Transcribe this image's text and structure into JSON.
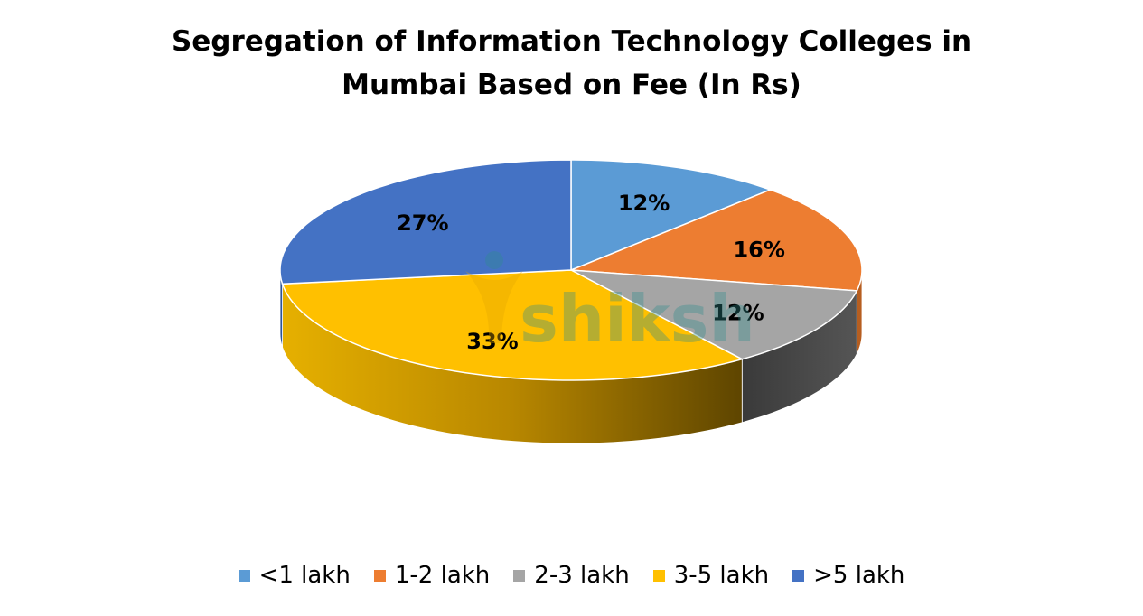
{
  "chart_data": {
    "type": "pie",
    "title": "Segregation of Information Technology Colleges in Mumbai Based on Fee (In Rs)",
    "title_lines": [
      "Segregation of Information Technology Colleges in",
      "Mumbai Based on Fee (In Rs)"
    ],
    "categories": [
      "<1 lakh",
      "1-2 lakh",
      "2-3 lakh",
      "3-5 lakh",
      ">5 lakh"
    ],
    "values": [
      12,
      16,
      12,
      33,
      27
    ],
    "data_labels": [
      "12%",
      "16%",
      "12%",
      "33%",
      "27%"
    ],
    "colors": [
      "#5B9BD5",
      "#ED7D31",
      "#A5A5A5",
      "#FFC000",
      "#4472C4"
    ],
    "side_colors": [
      "#3F77AD",
      "#B65E20",
      "#414141",
      "#C99400",
      "#2F5597"
    ],
    "style": "3d-pie",
    "legend": "bottom"
  },
  "watermark": {
    "text": "shiksha",
    "color": "#2F8C8C",
    "accent": "#E5A800"
  }
}
